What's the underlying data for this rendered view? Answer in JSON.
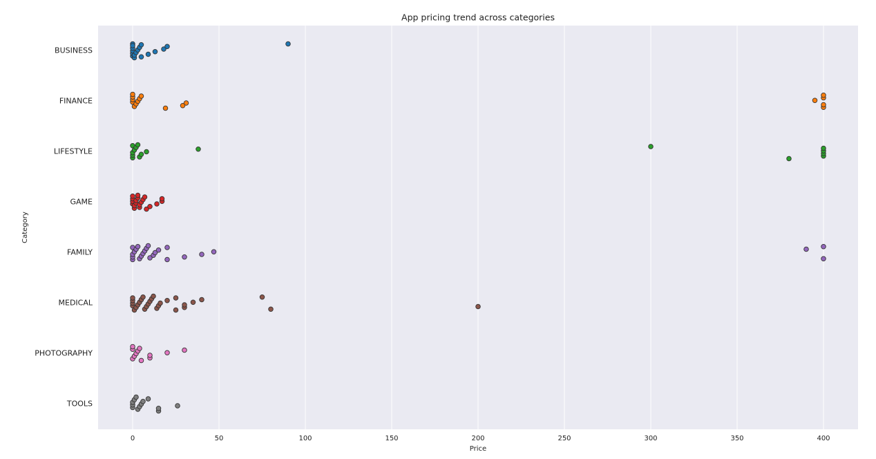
{
  "chart_data": {
    "type": "strip",
    "title": "App pricing trend across categories",
    "xlabel": "Price",
    "ylabel": "Category",
    "categories": [
      "BUSINESS",
      "FINANCE",
      "LIFESTYLE",
      "GAME",
      "FAMILY",
      "MEDICAL",
      "PHOTOGRAPHY",
      "TOOLS"
    ],
    "colors": [
      "#1f77b4",
      "#ff7f0e",
      "#2ca02c",
      "#d62728",
      "#9467bd",
      "#8c564b",
      "#e377c2",
      "#7f7f7f"
    ],
    "values": [
      [
        0,
        0,
        0,
        0,
        0,
        0,
        1,
        1,
        2,
        3,
        4,
        5,
        5,
        9,
        13,
        18,
        20,
        90
      ],
      [
        0,
        0,
        0,
        0,
        1,
        2,
        3,
        4,
        5,
        19,
        29,
        31,
        395,
        400,
        400,
        400,
        400
      ],
      [
        0,
        0,
        0,
        0,
        1,
        2,
        3,
        4,
        5,
        8,
        38,
        300,
        380,
        400,
        400,
        400,
        400
      ],
      [
        0,
        0,
        0,
        0,
        1,
        1,
        2,
        2,
        3,
        3,
        4,
        4,
        5,
        6,
        7,
        8,
        10,
        14,
        17,
        17
      ],
      [
        0,
        0,
        0,
        0,
        1,
        2,
        3,
        4,
        5,
        6,
        7,
        8,
        9,
        10,
        12,
        13,
        15,
        20,
        20,
        30,
        40,
        47,
        390,
        400,
        400
      ],
      [
        0,
        0,
        0,
        0,
        1,
        2,
        3,
        4,
        5,
        6,
        7,
        8,
        9,
        10,
        11,
        12,
        14,
        15,
        16,
        20,
        25,
        25,
        30,
        30,
        35,
        40,
        75,
        80,
        200
      ],
      [
        0,
        0,
        0,
        1,
        2,
        3,
        4,
        5,
        10,
        10,
        20,
        30
      ],
      [
        0,
        0,
        0,
        1,
        2,
        3,
        4,
        5,
        6,
        9,
        15,
        15,
        26
      ]
    ],
    "xlim": [
      -20,
      420
    ],
    "xticks": [
      0,
      50,
      100,
      150,
      200,
      250,
      300,
      350,
      400
    ],
    "grid": true
  }
}
